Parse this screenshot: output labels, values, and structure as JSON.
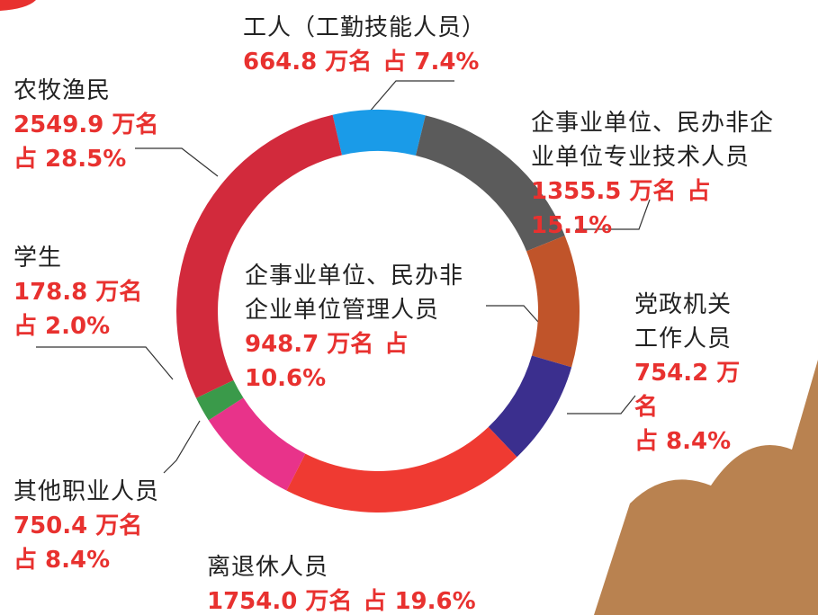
{
  "chart_data": {
    "type": "donut",
    "categories": [
      "工人（工勤技能人员）",
      "企事业单位、民办非企业单位专业技术人员",
      "企事业单位、民办非企业单位管理人员",
      "党政机关工作人员",
      "离退休人员",
      "其他职业人员",
      "学生",
      "农牧渔民"
    ],
    "counts": [
      664.8,
      1355.5,
      948.7,
      754.2,
      1754.0,
      750.4,
      178.8,
      2549.9
    ],
    "count_labels": [
      "664.8 万名",
      "1355.5 万名",
      "948.7 万名",
      "754.2 万名",
      "1754.0 万名",
      "750.4 万名",
      "178.8 万名",
      "2549.9 万名"
    ],
    "values": [
      7.4,
      15.1,
      10.6,
      8.4,
      19.6,
      8.4,
      2.0,
      28.5
    ],
    "value_labels": [
      "占 7.4%",
      "占 15.1%",
      "占 10.6%",
      "占 8.4%",
      "占 19.6%",
      "占 8.4%",
      "占 2.0%",
      "占 28.5%"
    ],
    "colors": [
      "#1a9be8",
      "#5b5b5b",
      "#c0542a",
      "#3b2f8e",
      "#ef3a32",
      "#e8338a",
      "#3a9a4a",
      "#d22a3c"
    ]
  }
}
